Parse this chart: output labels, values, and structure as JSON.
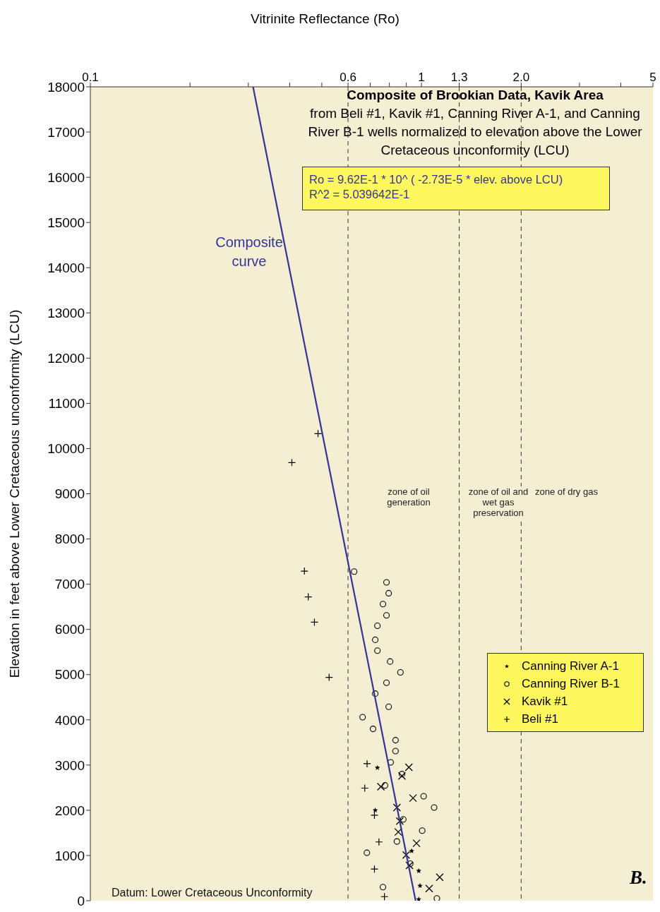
{
  "chart_data": {
    "type": "scatter",
    "title": "Composite of Brookian Data, Kavik Area",
    "subtitle": "from Beli #1, Kavik #1, Canning River A-1, and Canning River B-1 wells normalized to elevation above the Lower Cretaceous unconformity (LCU)",
    "xlabel": "Vitrinite Reflectance (Ro)",
    "ylabel": "Elevation in feet above Lower Cretaceous unconformity (LCU)",
    "annotations": [
      "Ro = 9.62E-1 * 10^ ( -2.73E-5 * elev. above LCU)",
      "R^2 = 5.039642E-1",
      "zone of oil generation",
      "zone of oil and wet gas preservation",
      "zone of dry gas",
      "Datum: Lower Cretaceous Unconformity",
      "B."
    ],
    "log": "x",
    "legend": "right",
    "xlim": [
      0.1,
      5
    ],
    "ylim": [
      0,
      18000
    ],
    "xticks": [
      0.1,
      {
        "value": 0.2,
        "label": null
      },
      {
        "value": 0.3,
        "label": null
      },
      {
        "value": 0.4,
        "label": null
      },
      {
        "value": 0.5,
        "label": null
      },
      0.6,
      {
        "value": 0.7,
        "label": null
      },
      {
        "value": 0.8,
        "label": null
      },
      {
        "value": 0.9,
        "label": null
      },
      1,
      1.3,
      {
        "value": 2,
        "label": "2.0"
      },
      {
        "value": 3,
        "label": null
      },
      {
        "value": 4,
        "label": null
      },
      5
    ],
    "yticks": [
      0,
      1000,
      2000,
      3000,
      4000,
      5000,
      6000,
      7000,
      8000,
      9000,
      10000,
      11000,
      12000,
      13000,
      14000,
      15000,
      16000,
      17000,
      18000
    ],
    "ref_lines": [
      {
        "axis": "x",
        "value": 0.6,
        "line_style": "dashed",
        "color": "#333333"
      },
      {
        "axis": "x",
        "value": 1.3,
        "line_style": "dashed",
        "color": "#333333"
      },
      {
        "axis": "x",
        "value": 2,
        "line_style": "dashed",
        "color": "#333333"
      }
    ],
    "series": [
      {
        "name": "Canning River A-1",
        "type": "scatter",
        "marker": "star",
        "color": "#000000",
        "x": [
          0.736,
          0.725,
          0.934,
          0.981,
          0.99,
          0.981
        ],
        "values": [
          2940,
          2000,
          1100,
          660,
          330,
          30
        ]
      },
      {
        "name": "Canning River B-1",
        "type": "scatter",
        "marker": "circle",
        "color": "#000000",
        "x": [
          0.626,
          0.784,
          0.796,
          0.765,
          0.784,
          0.736,
          0.725,
          0.736,
          0.804,
          0.864,
          0.784,
          0.725,
          0.796,
          0.664,
          0.714,
          0.835,
          0.835,
          0.807,
          0.873,
          0.776,
          1.015,
          1.092,
          0.881,
          1.005,
          0.843,
          0.684,
          0.925,
          0.765,
          1.113
        ],
        "values": [
          7280,
          7040,
          6800,
          6560,
          6310,
          6080,
          5770,
          5530,
          5290,
          5050,
          4820,
          4580,
          4290,
          4060,
          3800,
          3550,
          3310,
          3060,
          2800,
          2550,
          2310,
          2060,
          1800,
          1550,
          1310,
          1060,
          820,
          300,
          50
        ]
      },
      {
        "name": "Kavik #1",
        "type": "scatter",
        "marker": "x",
        "color": "#000000",
        "x": [
          0.916,
          0.873,
          0.754,
          0.943,
          0.843,
          0.86,
          0.851,
          0.966,
          0.899,
          0.92,
          1.135,
          1.055
        ],
        "values": [
          2950,
          2760,
          2520,
          2270,
          2060,
          1760,
          1520,
          1270,
          1010,
          780,
          520,
          270
        ]
      },
      {
        "name": "Beli #1",
        "type": "scatter",
        "marker": "cross",
        "color": "#000000",
        "x": [
          0.487,
          0.406,
          0.443,
          0.455,
          0.475,
          0.526,
          0.685,
          0.674,
          0.721,
          0.744,
          0.721,
          0.773
        ],
        "values": [
          10330,
          9690,
          7290,
          6720,
          6160,
          4940,
          3030,
          2490,
          1890,
          1300,
          700,
          90
        ]
      },
      {
        "name": "Composite curve",
        "type": "line",
        "marker": "none",
        "color": "#333399",
        "x": [
          0.96,
          0.31
        ],
        "values": [
          0,
          18000
        ]
      }
    ]
  }
}
